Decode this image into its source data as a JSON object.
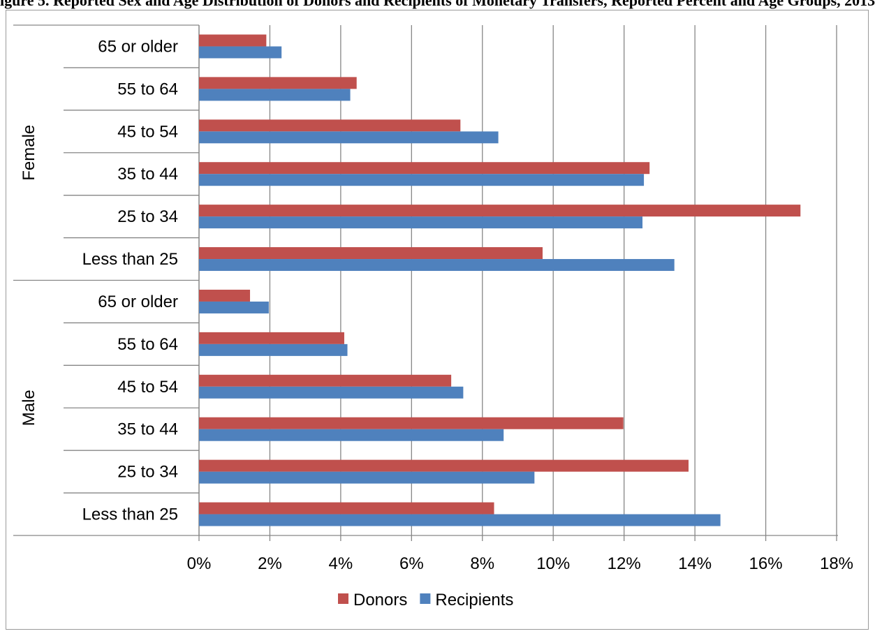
{
  "page_title_fragment": "igure 5. Reported Sex and Age Distribution of Donors and Recipients of Monetary Transfers, Reported Percent and Age Groups, 2013",
  "chart_data": {
    "type": "bar",
    "orientation": "horizontal",
    "groups": [
      {
        "name": "Female",
        "categories": [
          "65 or older",
          "55 to 64",
          "45 to 54",
          "35 to 44",
          "25 to 34",
          "Less than 25"
        ],
        "series": [
          {
            "name": "Donors",
            "values": [
              1.9,
              4.45,
              7.38,
              12.72,
              16.98,
              9.7
            ]
          },
          {
            "name": "Recipients",
            "values": [
              2.33,
              4.27,
              8.45,
              12.56,
              12.52,
              13.42
            ]
          }
        ]
      },
      {
        "name": "Male",
        "categories": [
          "65 or older",
          "55 to 64",
          "45 to 54",
          "35 to 44",
          "25 to 34",
          "Less than 25"
        ],
        "series": [
          {
            "name": "Donors",
            "values": [
              1.44,
              4.1,
              7.12,
              11.98,
              13.82,
              8.33
            ]
          },
          {
            "name": "Recipients",
            "values": [
              1.97,
              4.19,
              7.46,
              8.6,
              9.47,
              14.72
            ]
          }
        ]
      }
    ],
    "x_ticks": [
      "0%",
      "2%",
      "4%",
      "6%",
      "8%",
      "10%",
      "12%",
      "14%",
      "16%",
      "18%"
    ],
    "xlim": [
      0,
      18
    ],
    "grid": true,
    "legend": {
      "placement": "bottom",
      "entries": [
        "Donors",
        "Recipients"
      ]
    },
    "colors": {
      "Donors": "#c0504d",
      "Recipients": "#4f81bd",
      "grid": "#868686"
    }
  }
}
